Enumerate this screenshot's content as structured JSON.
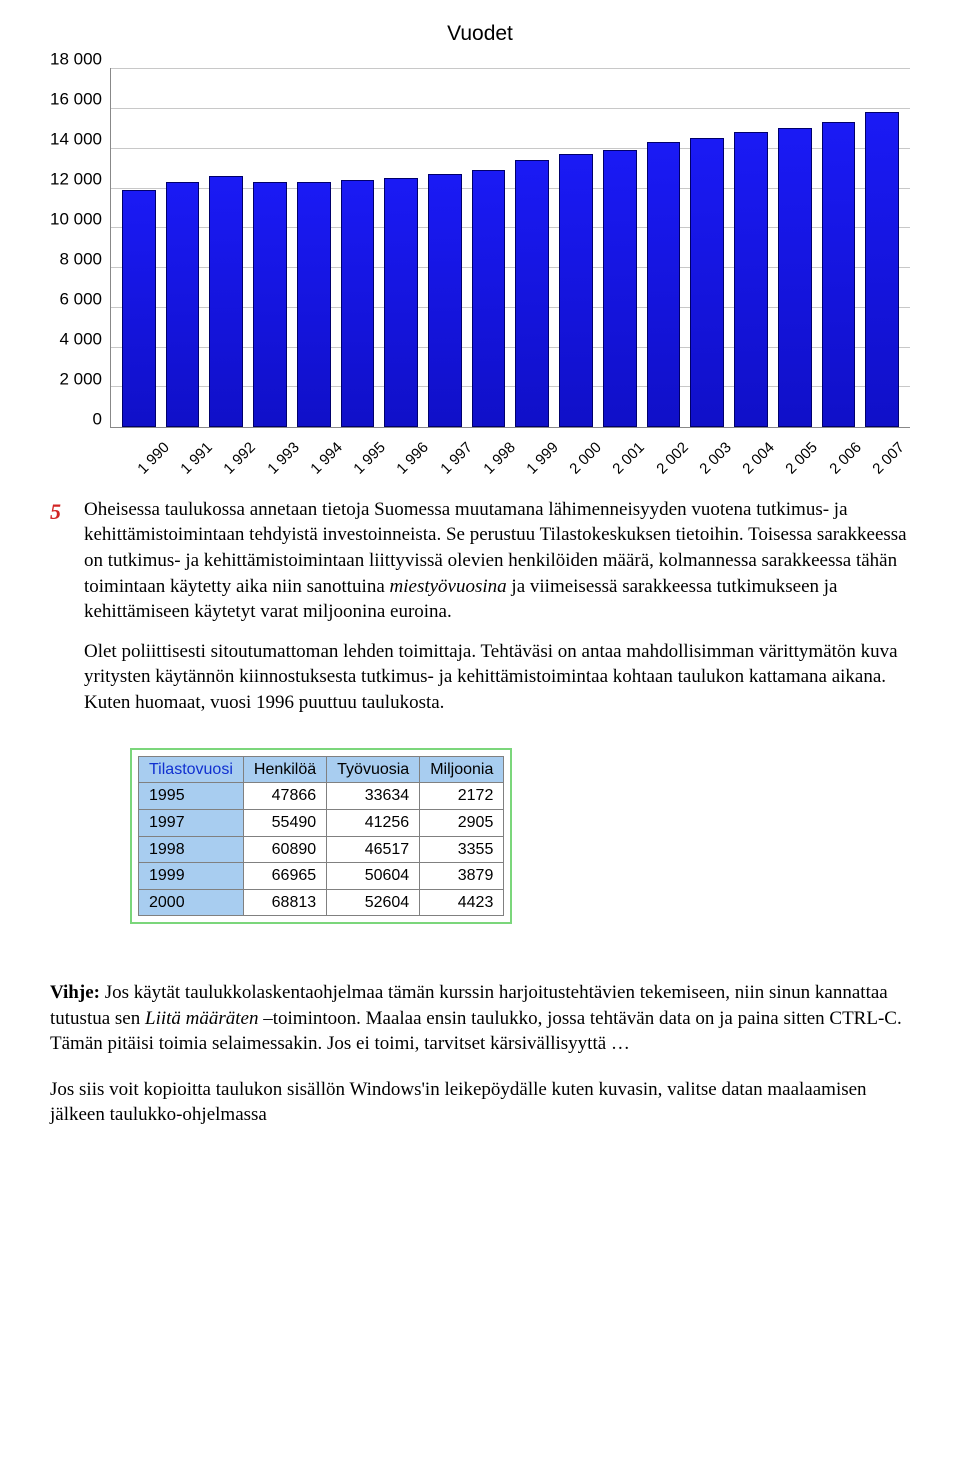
{
  "chart": {
    "type": "bar",
    "title": "Vuodet",
    "title_fontsize": 21,
    "label_fontsize": 17,
    "background_color": "#ffffff",
    "grid_color": "#c8c8c8",
    "bar_color": "#1414e0",
    "bar_border_color": "#00006a",
    "ylim": [
      0,
      18000
    ],
    "ytick_step": 2000,
    "yticks": [
      "18 000",
      "16 000",
      "14 000",
      "12 000",
      "10 000",
      "8 000",
      "6 000",
      "4 000",
      "2 000",
      "0"
    ],
    "categories": [
      "1 990",
      "1 991",
      "1 992",
      "1 993",
      "1 994",
      "1 995",
      "1 996",
      "1 997",
      "1 998",
      "1 999",
      "2 000",
      "2 001",
      "2 002",
      "2 003",
      "2 004",
      "2 005",
      "2 006",
      "2 007"
    ],
    "values": [
      11900,
      12300,
      12600,
      12300,
      12300,
      12400,
      12500,
      12700,
      12900,
      13400,
      13700,
      13900,
      14300,
      14500,
      14800,
      15000,
      15300,
      15800
    ]
  },
  "question_number": "5",
  "para1": "Oheisessa taulukossa annetaan tietoja Suomessa muutamana lähimenneisyyden vuotena tutkimus- ja kehittämistoimintaan tehdyistä investoinneista. Se perustuu Tilastokeskuksen tietoihin. Toisessa sarakkeessa on tutkimus- ja kehittämistoimintaan liittyvissä olevien henkilöiden määrä, kolmannessa sarakkeessa tähän toimintaan käytetty aika niin sanottuina miestyövuosina ja viimeisessä sarakkeessa tutkimukseen ja kehittämiseen käytetyt varat miljoonina euroina.",
  "para1_italic_word": "miestyövuosina",
  "para2": "Olet poliittisesti sitoutumattoman lehden toimittaja. Tehtäväsi on antaa mahdollisimman värittymätön kuva yritysten käytännön kiinnostuksesta tutkimus- ja kehittämistoimintaa kohtaan taulukon kattamana aikana. Kuten huomaat, vuosi 1996 puuttuu taulukosta.",
  "table": {
    "columns": [
      "Tilastovuosi",
      "Henkilöä",
      "Työvuosia",
      "Miljoonia"
    ],
    "header_bg": "#a8cdf0",
    "first_header_color": "#1030d0",
    "border_color": "#7bd67b",
    "rows": [
      [
        "1995",
        "47866",
        "33634",
        "2172"
      ],
      [
        "1997",
        "55490",
        "41256",
        "2905"
      ],
      [
        "1998",
        "60890",
        "46517",
        "3355"
      ],
      [
        "1999",
        "66965",
        "50604",
        "3879"
      ],
      [
        "2000",
        "68813",
        "52604",
        "4423"
      ]
    ]
  },
  "hint_label": "Vihje:",
  "hint_text": " Jos käytät taulukkolaskentaohjelmaa tämän kurssin harjoitustehtävien tekemiseen, niin sinun kannattaa tutustua sen Liitä määräten –toimintoon. Maalaa ensin taulukko, jossa tehtävän data on ja paina sitten CTRL-C. Tämän pitäisi toimia selaimessakin. Jos ei toimi, tarvitset kärsivällisyyttä …",
  "hint_italic_phrase": "Liitä määräten",
  "para3": "Jos siis voit kopioitta taulukon sisällön Windows'in leikepöydälle kuten kuvasin, valitse datan maalaamisen jälkeen taulukko-ohjelmassa"
}
